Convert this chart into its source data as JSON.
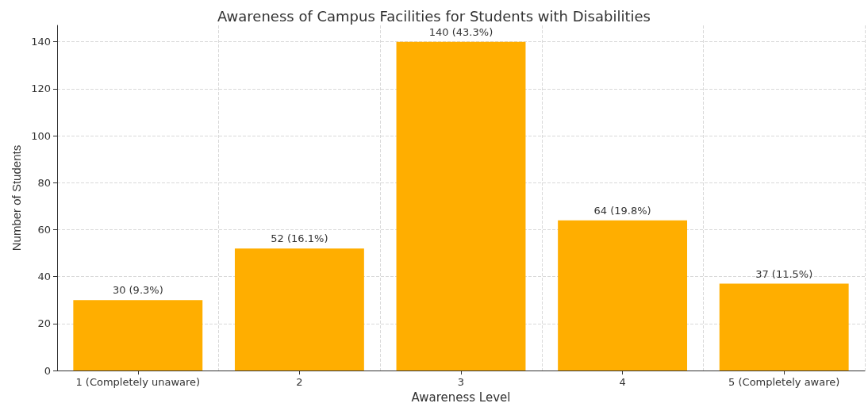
{
  "chart_data": {
    "type": "bar",
    "title": "Awareness of Campus Facilities for Students with Disabilities",
    "xlabel": "Awareness Level",
    "ylabel": "Number of Students",
    "categories": [
      "1 (Completely unaware)",
      "2",
      "3",
      "4",
      "5 (Completely aware)"
    ],
    "values": [
      30,
      52,
      140,
      64,
      37
    ],
    "value_labels": [
      "30 (9.3%)",
      "52 (16.1%)",
      "140 (43.3%)",
      "64 (19.8%)",
      "37 (11.5%)"
    ],
    "color": "#ffae00",
    "ylim": [
      0,
      147
    ],
    "yticks": [
      0,
      20,
      40,
      60,
      80,
      100,
      120,
      140
    ],
    "grid": true
  }
}
